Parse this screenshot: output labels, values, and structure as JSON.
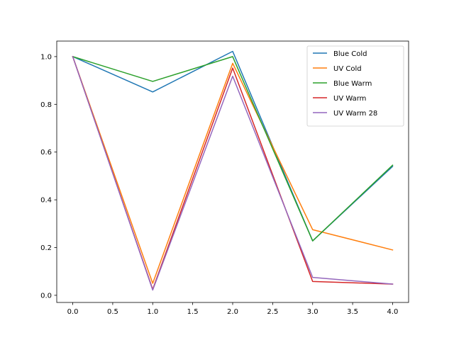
{
  "chart_data": {
    "type": "line",
    "title": "",
    "xlabel": "",
    "ylabel": "",
    "xlim": [
      -0.2,
      4.2
    ],
    "ylim": [
      -0.03,
      1.065
    ],
    "xticks": [
      0.0,
      0.5,
      1.0,
      1.5,
      2.0,
      2.5,
      3.0,
      3.5,
      4.0
    ],
    "xtick_labels": [
      "0.0",
      "0.5",
      "1.0",
      "1.5",
      "2.0",
      "2.5",
      "3.0",
      "3.5",
      "4.0"
    ],
    "yticks": [
      0.0,
      0.2,
      0.4,
      0.6,
      0.8,
      1.0
    ],
    "ytick_labels": [
      "0.0",
      "0.2",
      "0.4",
      "0.6",
      "0.8",
      "1.0"
    ],
    "grid": false,
    "legend_position": "top-right",
    "x": [
      0,
      1,
      2,
      3,
      4
    ],
    "series": [
      {
        "name": "Blue Cold",
        "color": "#1f77b4",
        "values": [
          1.0,
          0.852,
          1.022,
          0.228,
          0.54
        ]
      },
      {
        "name": "UV Cold",
        "color": "#ff7f0e",
        "values": [
          1.0,
          0.05,
          0.972,
          0.275,
          0.19
        ]
      },
      {
        "name": "Blue Warm",
        "color": "#2ca02c",
        "values": [
          1.0,
          0.896,
          1.0,
          0.228,
          0.545
        ]
      },
      {
        "name": "UV Warm",
        "color": "#d62728",
        "values": [
          1.0,
          0.025,
          0.952,
          0.058,
          0.047
        ]
      },
      {
        "name": "UV Warm 28",
        "color": "#9467bd",
        "values": [
          1.0,
          0.022,
          0.918,
          0.075,
          0.047
        ]
      }
    ]
  }
}
